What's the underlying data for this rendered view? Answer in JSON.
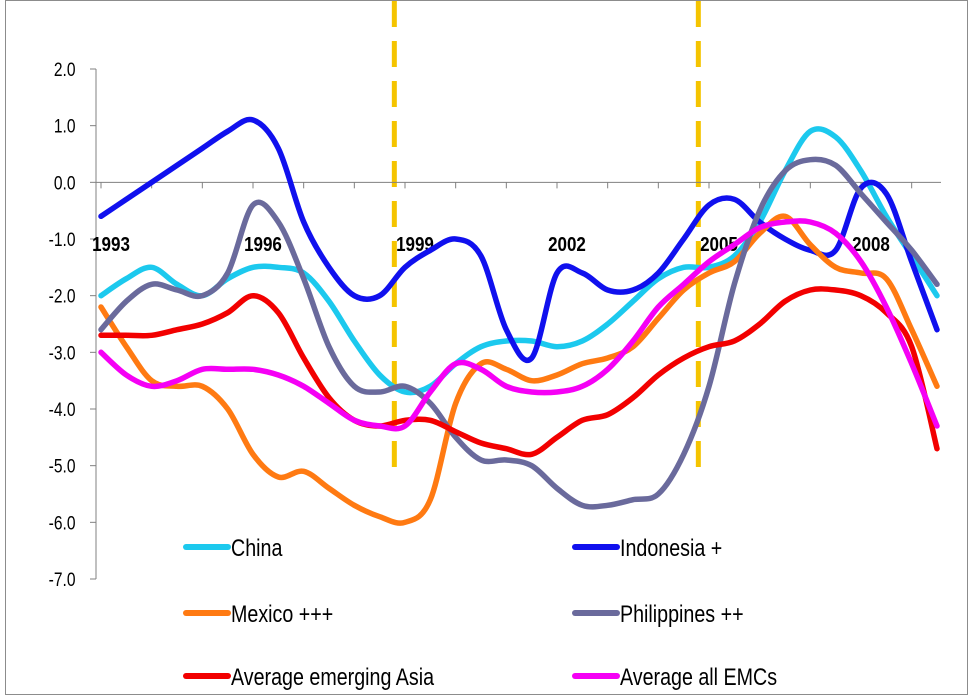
{
  "chart_data": {
    "type": "line",
    "title": "",
    "xlabel": "",
    "ylabel": "",
    "x_tick_labels": [
      "1993",
      "1996",
      "1999",
      "2002",
      "2005",
      "2008"
    ],
    "y_tick_labels": [
      "2.0",
      "1.0",
      "0.0",
      "-1.0",
      "-2.0",
      "-3.0",
      "-4.0",
      "-5.0",
      "-6.0",
      "-7.0"
    ],
    "ylim": [
      -7,
      2
    ],
    "xlim": [
      1993,
      2009.5
    ],
    "grid": false,
    "vertical_markers": [
      1998.75,
      2004.75
    ],
    "vertical_marker_color": "#f5c400",
    "series": [
      {
        "name": "China",
        "color": "#1cc9ee",
        "x": [
          1993,
          1993.5,
          1994,
          1994.5,
          1995,
          1995.5,
          1996,
          1996.5,
          1997,
          1997.5,
          1998,
          1998.5,
          1999,
          1999.5,
          2000,
          2000.5,
          2001,
          2001.5,
          2002,
          2002.5,
          2003,
          2003.5,
          2004,
          2004.5,
          2005,
          2005.5,
          2006,
          2006.5,
          2007,
          2007.5,
          2008,
          2008.5,
          2009,
          2009.5
        ],
        "y": [
          -2.0,
          -1.7,
          -1.5,
          -1.8,
          -2.0,
          -1.7,
          -1.5,
          -1.5,
          -1.6,
          -2.1,
          -2.8,
          -3.4,
          -3.7,
          -3.6,
          -3.2,
          -2.9,
          -2.8,
          -2.8,
          -2.9,
          -2.8,
          -2.5,
          -2.1,
          -1.7,
          -1.5,
          -1.5,
          -1.3,
          -0.7,
          0.2,
          0.9,
          0.8,
          0.2,
          -0.6,
          -1.3,
          -2.0
        ]
      },
      {
        "name": "Indonesia +",
        "color": "#1010ee",
        "x": [
          1993,
          1993.5,
          1994,
          1994.5,
          1995,
          1995.5,
          1996,
          1996.5,
          1997,
          1997.5,
          1998,
          1998.5,
          1999,
          1999.5,
          2000,
          2000.5,
          2001,
          2001.5,
          2002,
          2002.5,
          2003,
          2003.5,
          2004,
          2004.5,
          2005,
          2005.5,
          2006,
          2006.5,
          2007,
          2007.5,
          2008,
          2008.5,
          2009,
          2009.5
        ],
        "y": [
          -0.6,
          -0.3,
          0.0,
          0.3,
          0.6,
          0.9,
          1.1,
          0.6,
          -0.7,
          -1.5,
          -2.0,
          -2.0,
          -1.5,
          -1.2,
          -1.0,
          -1.3,
          -2.6,
          -3.1,
          -1.6,
          -1.6,
          -1.9,
          -1.9,
          -1.6,
          -1.0,
          -0.4,
          -0.3,
          -0.7,
          -1.0,
          -1.2,
          -1.2,
          -0.1,
          -0.2,
          -1.4,
          -2.6
        ]
      },
      {
        "name": "Mexico +++",
        "color": "#ff7a12",
        "x": [
          1993,
          1993.5,
          1994,
          1994.5,
          1995,
          1995.5,
          1996,
          1996.5,
          1997,
          1997.5,
          1998,
          1998.5,
          1999,
          1999.5,
          2000,
          2000.5,
          2001,
          2001.5,
          2002,
          2002.5,
          2003,
          2003.5,
          2004,
          2004.5,
          2005,
          2005.5,
          2006,
          2006.5,
          2007,
          2007.5,
          2008,
          2008.5,
          2009,
          2009.5
        ],
        "y": [
          -2.2,
          -2.9,
          -3.5,
          -3.6,
          -3.6,
          -4.0,
          -4.8,
          -5.2,
          -5.1,
          -5.4,
          -5.7,
          -5.9,
          -6.0,
          -5.6,
          -3.9,
          -3.2,
          -3.3,
          -3.5,
          -3.4,
          -3.2,
          -3.1,
          -2.9,
          -2.4,
          -1.9,
          -1.6,
          -1.4,
          -0.9,
          -0.6,
          -1.1,
          -1.5,
          -1.6,
          -1.7,
          -2.6,
          -3.6
        ]
      },
      {
        "name": "Philippines ++",
        "color": "#6a6a9c",
        "x": [
          1993,
          1993.5,
          1994,
          1994.5,
          1995,
          1995.5,
          1996,
          1996.5,
          1997,
          1997.5,
          1998,
          1998.5,
          1999,
          1999.5,
          2000,
          2000.5,
          2001,
          2001.5,
          2002,
          2002.5,
          2003,
          2003.5,
          2004,
          2004.5,
          2005,
          2005.5,
          2006,
          2006.5,
          2007,
          2007.5,
          2008,
          2008.5,
          2009,
          2009.5
        ],
        "y": [
          -2.6,
          -2.1,
          -1.8,
          -1.9,
          -2.0,
          -1.6,
          -0.4,
          -0.7,
          -1.7,
          -2.9,
          -3.6,
          -3.7,
          -3.6,
          -3.9,
          -4.5,
          -4.9,
          -4.9,
          -5.0,
          -5.4,
          -5.7,
          -5.7,
          -5.6,
          -5.5,
          -4.8,
          -3.6,
          -1.8,
          -0.5,
          0.2,
          0.4,
          0.3,
          -0.2,
          -0.7,
          -1.2,
          -1.8
        ]
      },
      {
        "name": "Average emerging Asia",
        "color": "#f20000",
        "x": [
          1993,
          1993.5,
          1994,
          1994.5,
          1995,
          1995.5,
          1996,
          1996.5,
          1997,
          1997.5,
          1998,
          1998.5,
          1999,
          1999.5,
          2000,
          2000.5,
          2001,
          2001.5,
          2002,
          2002.5,
          2003,
          2003.5,
          2004,
          2004.5,
          2005,
          2005.5,
          2006,
          2006.5,
          2007,
          2007.5,
          2008,
          2008.5,
          2009,
          2009.5
        ],
        "y": [
          -2.7,
          -2.7,
          -2.7,
          -2.6,
          -2.5,
          -2.3,
          -2.0,
          -2.3,
          -3.1,
          -3.8,
          -4.2,
          -4.3,
          -4.2,
          -4.2,
          -4.4,
          -4.6,
          -4.7,
          -4.8,
          -4.5,
          -4.2,
          -4.1,
          -3.8,
          -3.4,
          -3.1,
          -2.9,
          -2.8,
          -2.5,
          -2.1,
          -1.9,
          -1.9,
          -2.0,
          -2.3,
          -2.9,
          -4.7
        ]
      },
      {
        "name": "Average all EMCs",
        "color": "#f500f5",
        "x": [
          1993,
          1993.5,
          1994,
          1994.5,
          1995,
          1995.5,
          1996,
          1996.5,
          1997,
          1997.5,
          1998,
          1998.5,
          1999,
          1999.5,
          2000,
          2000.5,
          2001,
          2001.5,
          2002,
          2002.5,
          2003,
          2003.5,
          2004,
          2004.5,
          2005,
          2005.5,
          2006,
          2006.5,
          2007,
          2007.5,
          2008,
          2008.5,
          2009,
          2009.5
        ],
        "y": [
          -3.0,
          -3.4,
          -3.6,
          -3.5,
          -3.3,
          -3.3,
          -3.3,
          -3.4,
          -3.6,
          -3.9,
          -4.2,
          -4.3,
          -4.3,
          -3.7,
          -3.2,
          -3.3,
          -3.6,
          -3.7,
          -3.7,
          -3.6,
          -3.3,
          -2.8,
          -2.2,
          -1.8,
          -1.4,
          -1.1,
          -0.8,
          -0.7,
          -0.7,
          -0.9,
          -1.4,
          -2.2,
          -3.2,
          -4.3
        ]
      }
    ]
  }
}
